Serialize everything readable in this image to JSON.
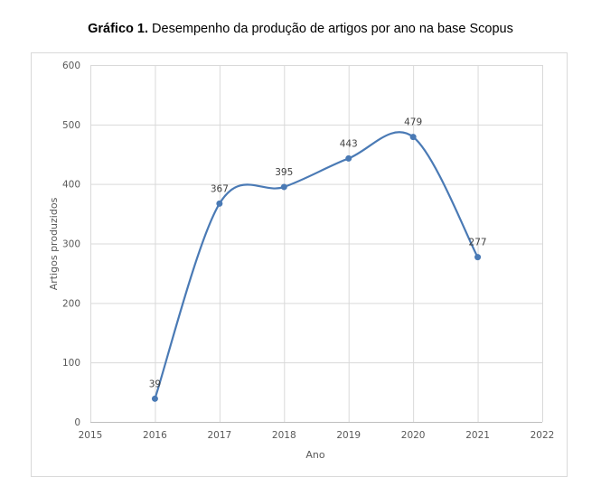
{
  "chart_data": {
    "type": "line",
    "title_bold": "Gráfico 1.",
    "title": "Desempenho da produção de artigos por ano na base Scopus",
    "xlabel": "Ano",
    "ylabel": "Artigos produzidos",
    "x": [
      2016,
      2017,
      2018,
      2019,
      2020,
      2021
    ],
    "y": [
      39,
      367,
      395,
      443,
      479,
      277
    ],
    "xlim": [
      2015,
      2022
    ],
    "ylim": [
      0,
      600
    ],
    "xticks": [
      2015,
      2016,
      2017,
      2018,
      2019,
      2020,
      2021,
      2022
    ],
    "yticks": [
      0,
      100,
      200,
      300,
      400,
      500,
      600
    ],
    "smoothed": true,
    "grid": true,
    "data_labels": true,
    "line_color": "#4a7ab5",
    "grid_color": "#d9d9d9"
  }
}
